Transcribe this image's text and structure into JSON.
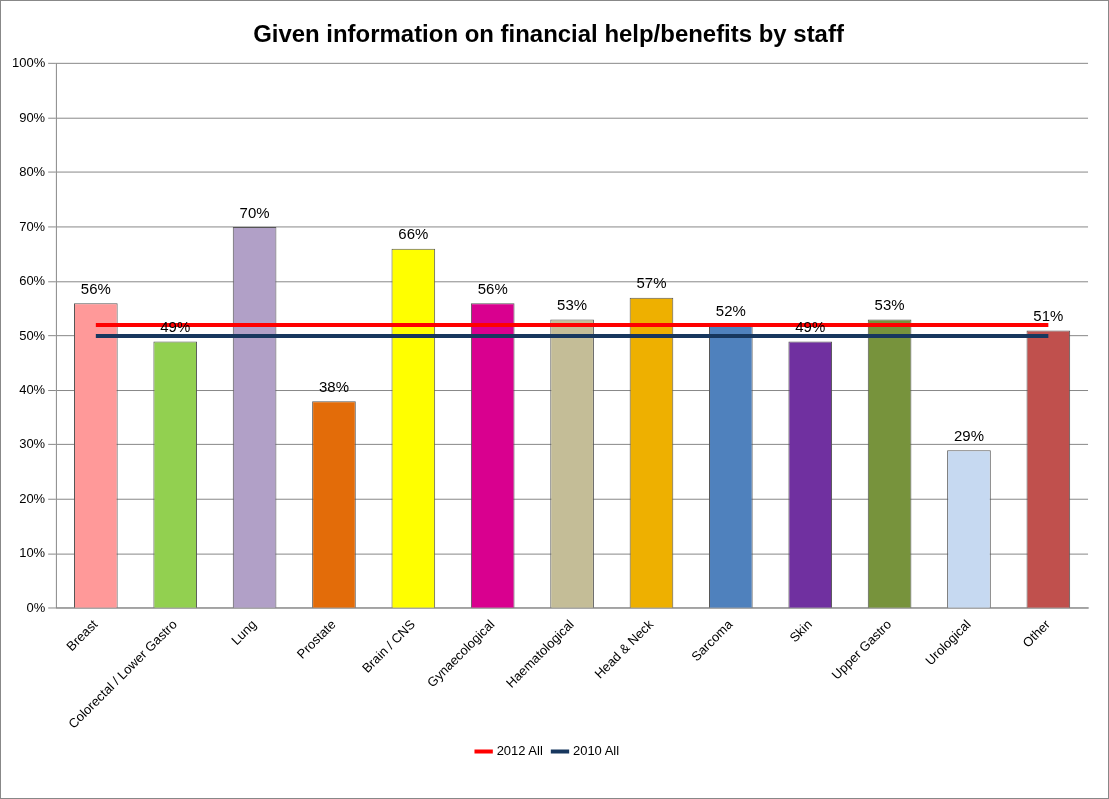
{
  "chart_data": {
    "type": "bar",
    "title": "Given information on financial help/benefits by staff",
    "categories": [
      "Breast",
      "Colorectal / Lower Gastro",
      "Lung",
      "Prostate",
      "Brain / CNS",
      "Gynaecological",
      "Haematological",
      "Head & Neck",
      "Sarcoma",
      "Skin",
      "Upper Gastro",
      "Urological",
      "Other"
    ],
    "series": [
      {
        "value_labels": [
          "56%",
          "49%",
          "70%",
          "38%",
          "66%",
          "56%",
          "53%",
          "57%",
          "52%",
          "49%",
          "53%",
          "29%",
          "51%"
        ],
        "colors": [
          "#ff9999",
          "#92d050",
          "#b1a0c7",
          "#e36c09",
          "#ffff00",
          "#d9008f",
          "#c4bd97",
          "#eeb000",
          "#4f81bd",
          "#7030a0",
          "#77933c",
          "#c6d9f1",
          "#c0504d"
        ],
        "values": [
          56,
          49,
          70,
          38,
          66,
          56,
          53,
          57,
          52,
          49,
          53,
          29,
          51
        ]
      },
      {
        "type": "line",
        "name": "2012 All",
        "color": "#ff0000",
        "values": [
          52,
          52,
          52,
          52,
          52,
          52,
          52,
          52,
          52,
          52,
          52,
          52,
          52
        ]
      },
      {
        "type": "line",
        "name": "2010 All",
        "color": "#17375e",
        "values": [
          50,
          50,
          50,
          50,
          50,
          50,
          50,
          50,
          50,
          50,
          50,
          50,
          50
        ]
      }
    ],
    "ylim": [
      0,
      100
    ],
    "yticks": [
      {
        "value": 0,
        "label": "0%"
      },
      {
        "value": 10,
        "label": "10%"
      },
      {
        "value": 20,
        "label": "20%"
      },
      {
        "value": 30,
        "label": "30%"
      },
      {
        "value": 40,
        "label": "40%"
      },
      {
        "value": 50,
        "label": "50%"
      },
      {
        "value": 60,
        "label": "60%"
      },
      {
        "value": 70,
        "label": "70%"
      },
      {
        "value": 80,
        "label": "80%"
      },
      {
        "value": 90,
        "label": "90%"
      },
      {
        "value": 100,
        "label": "100%"
      }
    ],
    "grid": "y",
    "legend": "bottom",
    "marker": "none",
    "line_style": "solid"
  }
}
